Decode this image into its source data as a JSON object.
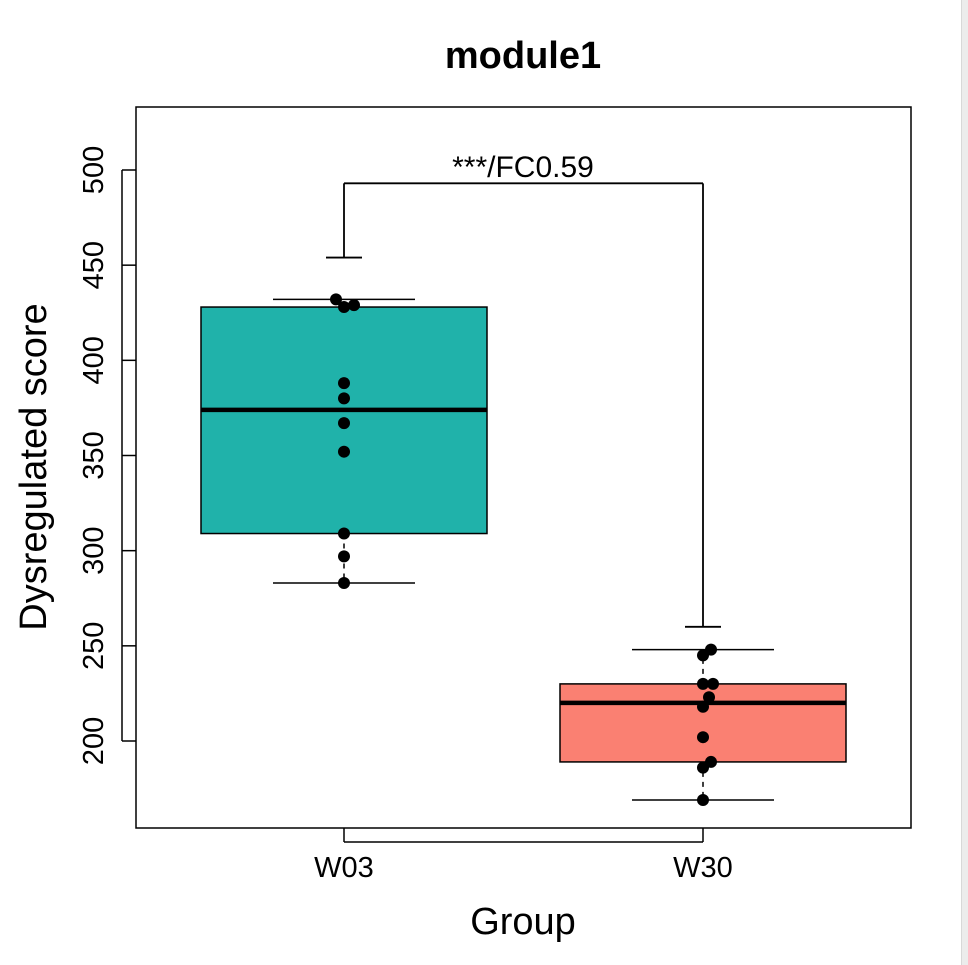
{
  "chart_data": {
    "type": "box",
    "title": "module1",
    "xlabel": "Group",
    "ylabel": "Dysregulated score",
    "ylim": [
      155,
      533
    ],
    "yticks": [
      200,
      250,
      300,
      350,
      400,
      450,
      500
    ],
    "categories": [
      "W03",
      "W30"
    ],
    "boxes": [
      {
        "name": "W03",
        "color": "#20B2AA",
        "whisker_low": 283,
        "q1": 309,
        "median": 374,
        "q3": 428,
        "whisker_high": 432,
        "points": [
          432,
          429,
          428,
          388,
          380,
          367,
          352,
          309,
          297,
          283
        ]
      },
      {
        "name": "W30",
        "color": "#FA8072",
        "whisker_low": 169,
        "q1": 189,
        "median": 220,
        "q3": 230,
        "whisker_high": 248,
        "points": [
          248,
          245,
          230,
          230,
          223,
          218,
          202,
          189,
          186,
          169
        ]
      }
    ],
    "significance": {
      "label": "***/FC0.59",
      "from": "W03",
      "to": "W30",
      "left_end": 454,
      "right_end": 260,
      "bar_level": 493
    },
    "grid": false,
    "legend": "none"
  }
}
